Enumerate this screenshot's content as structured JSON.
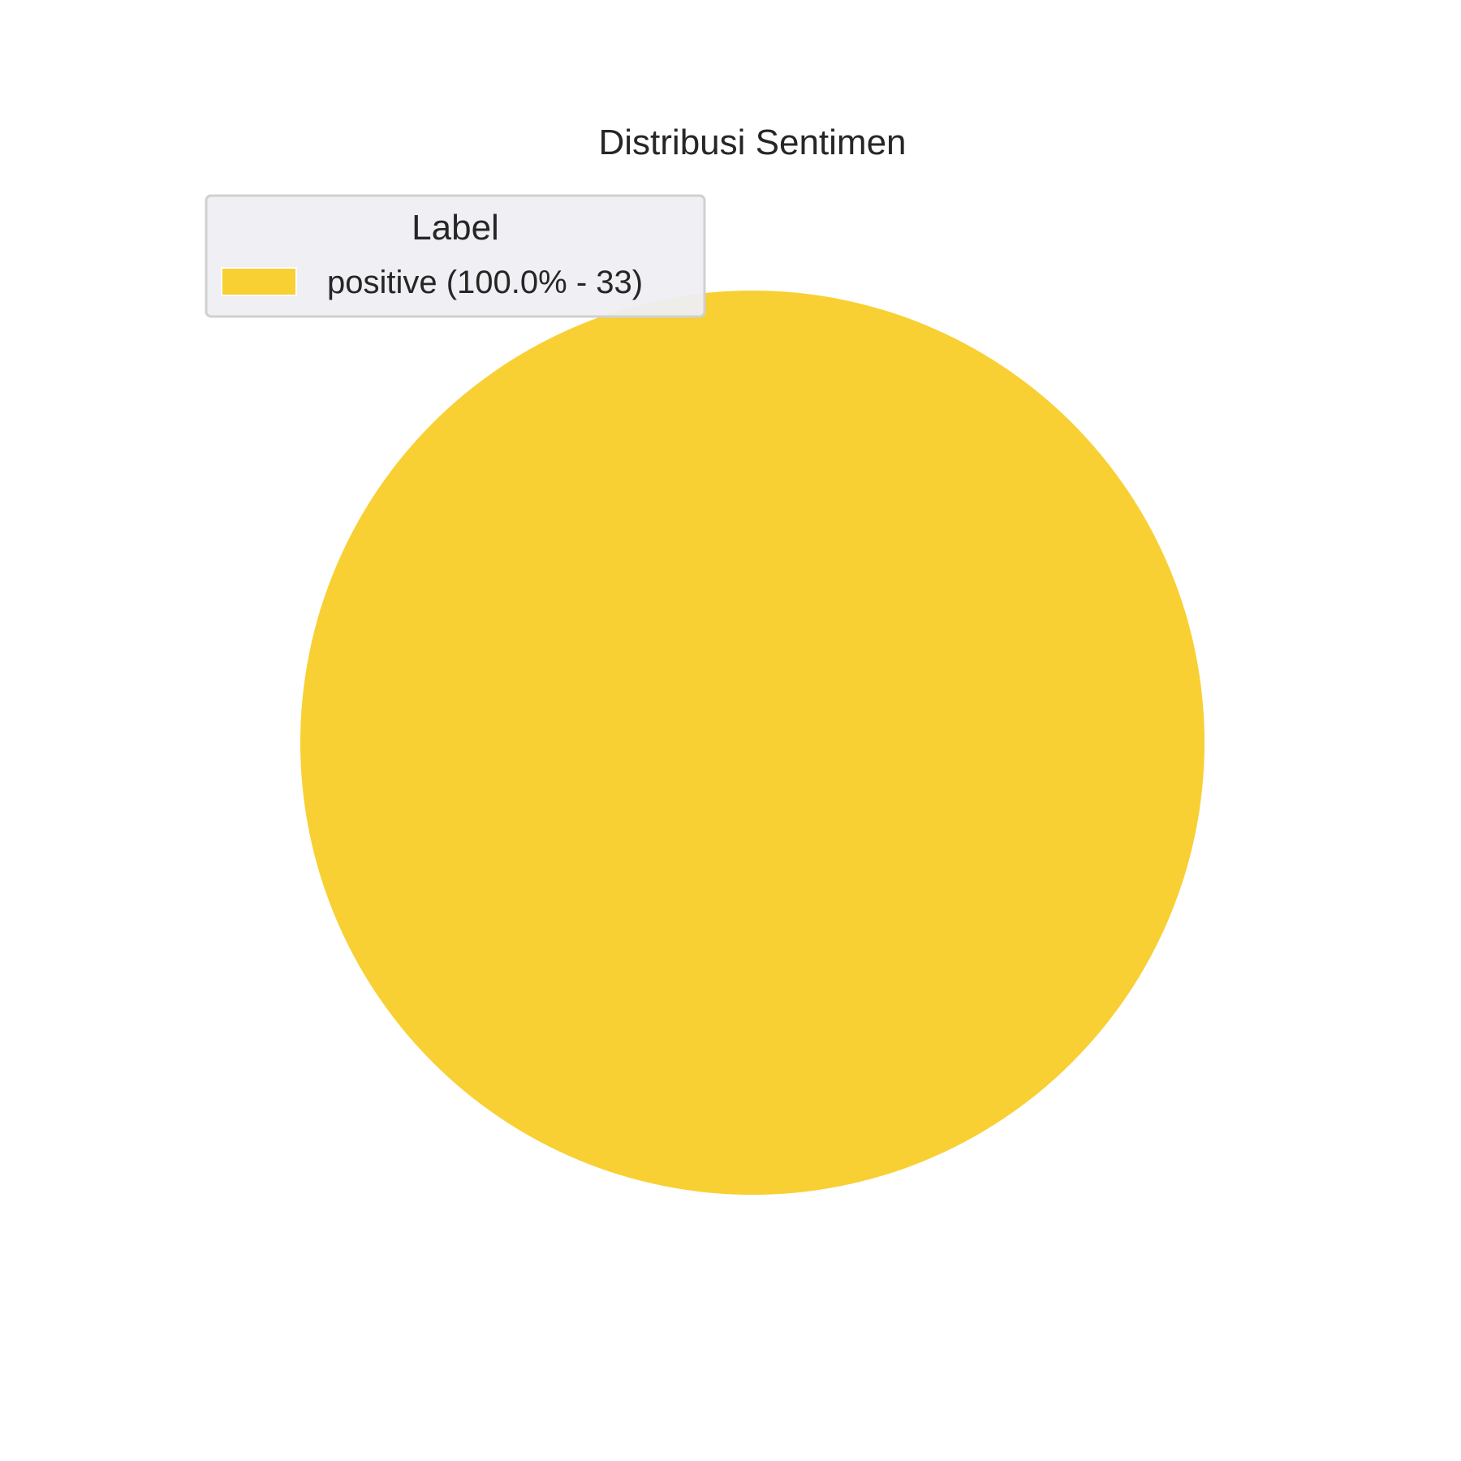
{
  "chart_data": {
    "type": "pie",
    "title": "Distribusi Sentimen",
    "legend_title": "Label",
    "legend_position": "upper-left",
    "slices": [
      {
        "label": "positive",
        "value": 33,
        "percent": 100.0,
        "legend_label": "positive (100.0% - 33)",
        "color": "#F8D033"
      }
    ],
    "colors": {
      "legend_background": "#EEEEF3",
      "legend_border": "#D0D0D0",
      "text": "#262626"
    }
  }
}
